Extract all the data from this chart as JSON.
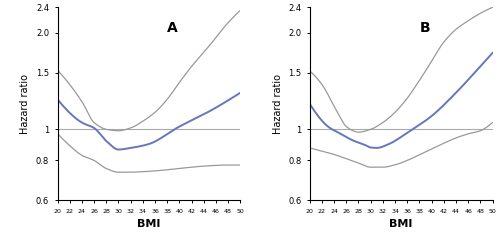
{
  "xlim": [
    20,
    50
  ],
  "ylim": [
    0.6,
    2.4
  ],
  "xticks": [
    20,
    22,
    24,
    26,
    28,
    30,
    32,
    34,
    36,
    38,
    40,
    42,
    44,
    46,
    48,
    50
  ],
  "yticks": [
    0.6,
    0.8,
    1.0,
    1.5,
    2.0,
    2.4
  ],
  "ytick_labels": [
    "0.6",
    "0.8",
    "1",
    "1.5",
    "2.0",
    "2.4"
  ],
  "xlabel": "BMI",
  "ylabel": "Hazard ratio",
  "panel_A_label": "A",
  "panel_B_label": "B",
  "ref_line_y": 1.0,
  "main_color": "#6677bb",
  "ci_color": "#999999",
  "ref_color": "#aaaaaa",
  "A_main_x": [
    20,
    24,
    26,
    28,
    30,
    32,
    35,
    40,
    45,
    50
  ],
  "A_main_y": [
    1.24,
    1.05,
    1.01,
    0.92,
    0.865,
    0.875,
    0.9,
    1.02,
    1.14,
    1.3
  ],
  "A_upper_x": [
    20,
    22,
    24,
    26,
    28,
    30,
    32,
    34,
    36,
    38,
    40,
    42,
    45,
    48,
    50
  ],
  "A_upper_y": [
    1.53,
    1.38,
    1.22,
    1.05,
    1.0,
    0.99,
    1.01,
    1.06,
    1.13,
    1.24,
    1.4,
    1.57,
    1.83,
    2.15,
    2.35
  ],
  "A_lower_x": [
    20,
    22,
    24,
    26,
    28,
    30,
    32,
    34,
    36,
    38,
    40,
    42,
    44,
    46,
    48,
    50
  ],
  "A_lower_y": [
    0.97,
    0.89,
    0.83,
    0.8,
    0.755,
    0.735,
    0.735,
    0.738,
    0.742,
    0.748,
    0.755,
    0.762,
    0.768,
    0.772,
    0.774,
    0.774
  ],
  "B_main_x": [
    20,
    23,
    25,
    27,
    29,
    30,
    31,
    33,
    36,
    40,
    44,
    48,
    50
  ],
  "B_main_y": [
    1.2,
    1.02,
    0.97,
    0.925,
    0.895,
    0.878,
    0.875,
    0.9,
    0.975,
    1.1,
    1.3,
    1.57,
    1.73
  ],
  "B_upper_x": [
    20,
    22,
    24,
    25,
    26,
    28,
    30,
    32,
    34,
    36,
    38,
    40,
    42,
    44,
    46,
    48,
    50
  ],
  "B_upper_y": [
    1.52,
    1.38,
    1.18,
    1.09,
    1.02,
    0.98,
    1.0,
    1.05,
    1.13,
    1.25,
    1.42,
    1.63,
    1.87,
    2.05,
    2.18,
    2.3,
    2.4
  ],
  "B_lower_x": [
    20,
    22,
    24,
    26,
    28,
    30,
    32,
    34,
    36,
    38,
    40,
    42,
    44,
    46,
    48,
    50
  ],
  "B_lower_y": [
    0.875,
    0.855,
    0.835,
    0.81,
    0.785,
    0.762,
    0.762,
    0.775,
    0.8,
    0.833,
    0.868,
    0.905,
    0.94,
    0.968,
    0.99,
    1.05
  ]
}
